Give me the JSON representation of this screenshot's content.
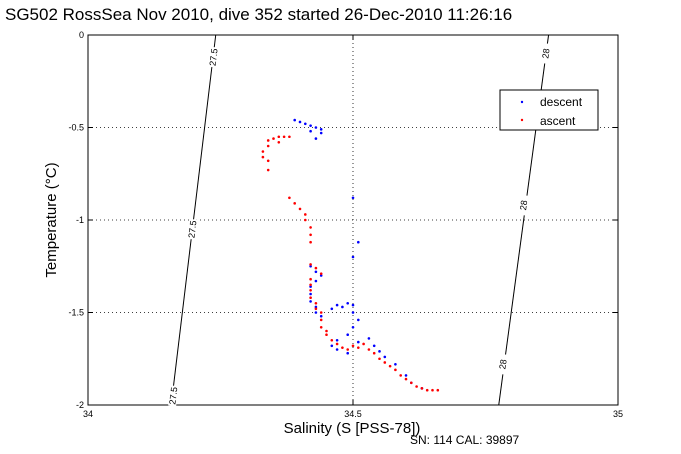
{
  "chart_data": {
    "type": "scatter",
    "title": "SG502 RossSea Nov 2010, dive 352 started 26-Dec-2010 11:26:16",
    "xlabel": "Salinity (S [PSS-78])",
    "ylabel": "Temperature (°C)",
    "xlim": [
      34,
      35
    ],
    "ylim": [
      -2,
      0
    ],
    "xticks": [
      "34",
      "34.5",
      "35"
    ],
    "yticks": [
      "-2",
      "-1.5",
      "-1",
      "-0.5",
      "0"
    ],
    "grid": true,
    "legend_position": "top-right",
    "series": [
      {
        "name": "descent",
        "color": "#0000ff",
        "points": [
          [
            34.39,
            -0.46
          ],
          [
            34.4,
            -0.47
          ],
          [
            34.41,
            -0.48
          ],
          [
            34.42,
            -0.49
          ],
          [
            34.43,
            -0.5
          ],
          [
            34.44,
            -0.51
          ],
          [
            34.44,
            -0.53
          ],
          [
            34.42,
            -0.52
          ],
          [
            34.43,
            -0.56
          ],
          [
            34.5,
            -0.88
          ],
          [
            34.51,
            -1.12
          ],
          [
            34.5,
            -1.2
          ],
          [
            34.42,
            -1.25
          ],
          [
            34.43,
            -1.28
          ],
          [
            34.44,
            -1.3
          ],
          [
            34.43,
            -1.33
          ],
          [
            34.42,
            -1.36
          ],
          [
            34.42,
            -1.4
          ],
          [
            34.42,
            -1.44
          ],
          [
            34.43,
            -1.47
          ],
          [
            34.43,
            -1.5
          ],
          [
            34.44,
            -1.52
          ],
          [
            34.46,
            -1.48
          ],
          [
            34.47,
            -1.46
          ],
          [
            34.48,
            -1.47
          ],
          [
            34.49,
            -1.45
          ],
          [
            34.5,
            -1.46
          ],
          [
            34.5,
            -1.5
          ],
          [
            34.51,
            -1.54
          ],
          [
            34.5,
            -1.58
          ],
          [
            34.49,
            -1.62
          ],
          [
            34.47,
            -1.65
          ],
          [
            34.46,
            -1.68
          ],
          [
            34.47,
            -1.7
          ],
          [
            34.49,
            -1.72
          ],
          [
            34.51,
            -1.66
          ],
          [
            34.53,
            -1.64
          ],
          [
            34.54,
            -1.68
          ],
          [
            34.55,
            -1.71
          ],
          [
            34.56,
            -1.74
          ],
          [
            34.58,
            -1.78
          ],
          [
            34.6,
            -1.84
          ],
          [
            34.61,
            -1.88
          ],
          [
            34.63,
            -1.91
          ]
        ]
      },
      {
        "name": "ascent",
        "color": "#ff0000",
        "points": [
          [
            34.34,
            -0.57
          ],
          [
            34.35,
            -0.56
          ],
          [
            34.36,
            -0.55
          ],
          [
            34.37,
            -0.55
          ],
          [
            34.38,
            -0.55
          ],
          [
            34.36,
            -0.58
          ],
          [
            34.34,
            -0.6
          ],
          [
            34.33,
            -0.63
          ],
          [
            34.33,
            -0.66
          ],
          [
            34.34,
            -0.68
          ],
          [
            34.34,
            -0.73
          ],
          [
            34.38,
            -0.88
          ],
          [
            34.39,
            -0.91
          ],
          [
            34.4,
            -0.94
          ],
          [
            34.41,
            -0.97
          ],
          [
            34.41,
            -1.0
          ],
          [
            34.42,
            -1.04
          ],
          [
            34.42,
            -1.08
          ],
          [
            34.42,
            -1.12
          ],
          [
            34.42,
            -1.24
          ],
          [
            34.43,
            -1.26
          ],
          [
            34.44,
            -1.29
          ],
          [
            34.42,
            -1.32
          ],
          [
            34.42,
            -1.35
          ],
          [
            34.42,
            -1.38
          ],
          [
            34.42,
            -1.42
          ],
          [
            34.43,
            -1.45
          ],
          [
            34.43,
            -1.48
          ],
          [
            34.44,
            -1.5
          ],
          [
            34.44,
            -1.54
          ],
          [
            34.44,
            -1.58
          ],
          [
            34.45,
            -1.6
          ],
          [
            34.45,
            -1.62
          ],
          [
            34.46,
            -1.65
          ],
          [
            34.47,
            -1.67
          ],
          [
            34.48,
            -1.69
          ],
          [
            34.49,
            -1.7
          ],
          [
            34.5,
            -1.68
          ],
          [
            34.51,
            -1.69
          ],
          [
            34.52,
            -1.67
          ],
          [
            34.53,
            -1.7
          ],
          [
            34.54,
            -1.72
          ],
          [
            34.55,
            -1.75
          ],
          [
            34.56,
            -1.77
          ],
          [
            34.57,
            -1.79
          ],
          [
            34.58,
            -1.81
          ],
          [
            34.59,
            -1.84
          ],
          [
            34.6,
            -1.86
          ],
          [
            34.61,
            -1.88
          ],
          [
            34.62,
            -1.9
          ],
          [
            34.63,
            -1.91
          ],
          [
            34.64,
            -1.92
          ],
          [
            34.65,
            -1.92
          ],
          [
            34.66,
            -1.92
          ]
        ]
      }
    ],
    "contours": [
      {
        "label": "27.5",
        "points": [
          [
            34.241,
            0
          ],
          [
            34.157,
            -2
          ]
        ],
        "label_positions": [
          [
            34.237,
            -0.12
          ],
          [
            34.197,
            -1.05
          ],
          [
            34.161,
            -1.95
          ]
        ]
      },
      {
        "label": "28",
        "points": [
          [
            34.869,
            0
          ],
          [
            34.775,
            -2
          ]
        ],
        "label_positions": [
          [
            34.864,
            -0.1
          ],
          [
            34.822,
            -0.92
          ],
          [
            34.783,
            -1.78
          ]
        ]
      }
    ]
  },
  "footer": {
    "sn_cal": "SN: 114  CAL: 39897"
  }
}
